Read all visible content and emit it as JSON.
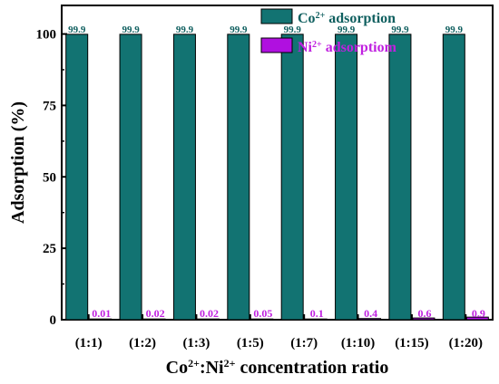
{
  "chart_data": {
    "type": "bar",
    "title": "",
    "xlabel": {
      "parts": [
        {
          "text": "Co",
          "sup": false
        },
        {
          "text": "2+",
          "sup": true
        },
        {
          "text": ":Ni",
          "sup": false
        },
        {
          "text": "2+",
          "sup": true
        },
        {
          "text": " concentration ratio",
          "sup": false
        }
      ]
    },
    "ylabel": "Adsorption (%)",
    "ylim": [
      0,
      110
    ],
    "yticks": [
      0,
      25,
      50,
      75,
      100
    ],
    "categories": [
      "(1:1)",
      "(1:2)",
      "(1:3)",
      "(1:5)",
      "(1:7)",
      "(1:10)",
      "(1:15)",
      "(1:20)"
    ],
    "series": [
      {
        "legend_parts": [
          {
            "text": "Co",
            "sup": false
          },
          {
            "text": "2+",
            "sup": true
          },
          {
            "text": " adsorption",
            "sup": false
          }
        ],
        "color": "#127372",
        "label_color": "#0f5f5f",
        "values": [
          99.9,
          99.9,
          99.9,
          99.9,
          99.9,
          99.9,
          99.9,
          99.9
        ],
        "labels": [
          "99.9",
          "99.9",
          "99.9",
          "99.9",
          "99.9",
          "99.9",
          "99.9",
          "99.9"
        ]
      },
      {
        "legend_parts": [
          {
            "text": "Ni",
            "sup": false
          },
          {
            "text": "2+",
            "sup": true
          },
          {
            "text": " adsorptiom",
            "sup": false
          }
        ],
        "color": "#b010e0",
        "label_color": "#c020e0",
        "values": [
          0.01,
          0.02,
          0.02,
          0.05,
          0.1,
          0.4,
          0.6,
          0.9
        ],
        "labels": [
          "0.01",
          "0.02",
          "0.02",
          "0.05",
          "0.1",
          "0.4",
          "0.6",
          "0.9"
        ]
      }
    ],
    "legend_position": "top-right",
    "grid": false
  }
}
